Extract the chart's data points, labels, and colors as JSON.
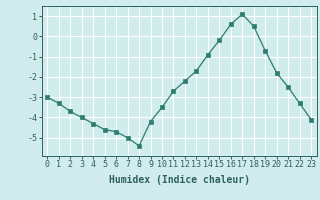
{
  "x": [
    0,
    1,
    2,
    3,
    4,
    5,
    6,
    7,
    8,
    9,
    10,
    11,
    12,
    13,
    14,
    15,
    16,
    17,
    18,
    19,
    20,
    21,
    22,
    23
  ],
  "y": [
    -3.0,
    -3.3,
    -3.7,
    -4.0,
    -4.3,
    -4.6,
    -4.7,
    -5.0,
    -5.4,
    -4.2,
    -3.5,
    -2.7,
    -2.2,
    -1.7,
    -0.9,
    -0.2,
    0.6,
    1.1,
    0.5,
    -0.7,
    -1.8,
    -2.5,
    -3.3,
    -4.1
  ],
  "line_color": "#2e7d6e",
  "marker": "s",
  "marker_size": 2.5,
  "xlabel": "Humidex (Indice chaleur)",
  "background_color": "#d0ecec",
  "grid_color": "#ffffff",
  "ylim": [
    -5.9,
    1.5
  ],
  "xlim": [
    -0.5,
    23.5
  ],
  "yticks": [
    1,
    0,
    -1,
    -2,
    -3,
    -4,
    -5
  ],
  "xticks": [
    0,
    1,
    2,
    3,
    4,
    5,
    6,
    7,
    8,
    9,
    10,
    11,
    12,
    13,
    14,
    15,
    16,
    17,
    18,
    19,
    20,
    21,
    22,
    23
  ],
  "tick_color": "#2e6060",
  "label_fontsize": 6.0,
  "xlabel_fontsize": 7.0,
  "ytick_fontsize": 6.0
}
